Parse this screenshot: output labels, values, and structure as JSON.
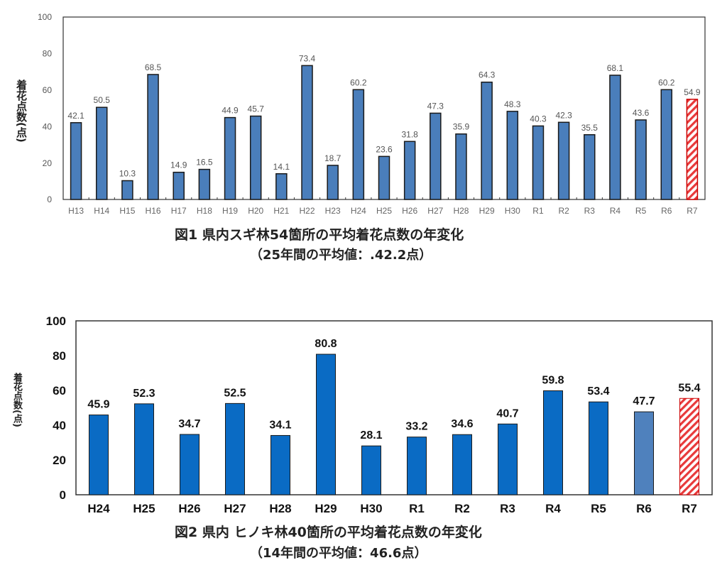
{
  "colors": {
    "bar1": "#4a7ebb",
    "bar2": "#0a6bc4",
    "bar2_r6": "#4f81bd",
    "highlight": "#e8393a",
    "axis": "#333333"
  },
  "chart_data": [
    {
      "type": "bar",
      "title": "図1  県内スギ林54箇所の平均着花点数の年変化",
      "subtitle": "（25年間の平均値：.42.2点）",
      "ylabel": "着花点数(点)",
      "xlabel": "",
      "ylim": [
        0,
        100
      ],
      "yticks": [
        0,
        20,
        40,
        60,
        80,
        100
      ],
      "categories": [
        "H13",
        "H14",
        "H15",
        "H16",
        "H17",
        "H18",
        "H19",
        "H20",
        "H21",
        "H22",
        "H23",
        "H24",
        "H25",
        "H26",
        "H27",
        "H28",
        "H29",
        "H30",
        "R1",
        "R2",
        "R3",
        "R4",
        "R5",
        "R6",
        "R7"
      ],
      "values": [
        42.1,
        50.5,
        10.3,
        68.5,
        14.9,
        16.5,
        44.9,
        45.7,
        14.1,
        73.4,
        18.7,
        60.2,
        23.6,
        31.8,
        47.3,
        35.9,
        64.3,
        48.3,
        40.3,
        42.3,
        35.5,
        68.1,
        43.6,
        60.2,
        54.9
      ],
      "labels": [
        "42.1",
        "50.5",
        "10.3",
        "68.5",
        "14.9",
        "16.5",
        "44.9",
        "45.7",
        "14.1",
        "73.4",
        "18.7",
        "60.2",
        "23.6",
        "31.8",
        "47.3",
        "35.9",
        "64.3",
        "48.3",
        "40.3",
        "42.3",
        "35.5",
        "68.1",
        "43.6",
        "60.2",
        "54.9"
      ],
      "highlight": [
        "R7"
      ],
      "grid": false,
      "legend": "none"
    },
    {
      "type": "bar",
      "title": "図2  県内 ヒノキ林40箇所の平均着花点数の年変化",
      "subtitle": "（14年間の平均値：46.6点）",
      "ylabel": "着花点数(点)",
      "xlabel": "",
      "ylim": [
        0,
        100
      ],
      "yticks": [
        0,
        20,
        40,
        60,
        80,
        100
      ],
      "categories": [
        "H24",
        "H25",
        "H26",
        "H27",
        "H28",
        "H29",
        "H30",
        "R1",
        "R2",
        "R3",
        "R4",
        "R5",
        "R6",
        "R7"
      ],
      "values": [
        45.9,
        52.3,
        34.7,
        52.5,
        34.1,
        80.8,
        28.1,
        33.2,
        34.6,
        40.7,
        59.8,
        53.4,
        47.7,
        55.4
      ],
      "labels": [
        "45.9",
        "52.3",
        "34.7",
        "52.5",
        "34.1",
        "80.8",
        "28.1",
        "33.2",
        "34.6",
        "40.7",
        "59.8",
        "53.4",
        "47.7",
        "55.4"
      ],
      "highlight": [
        "R7"
      ],
      "grid": false,
      "legend": "none"
    }
  ]
}
